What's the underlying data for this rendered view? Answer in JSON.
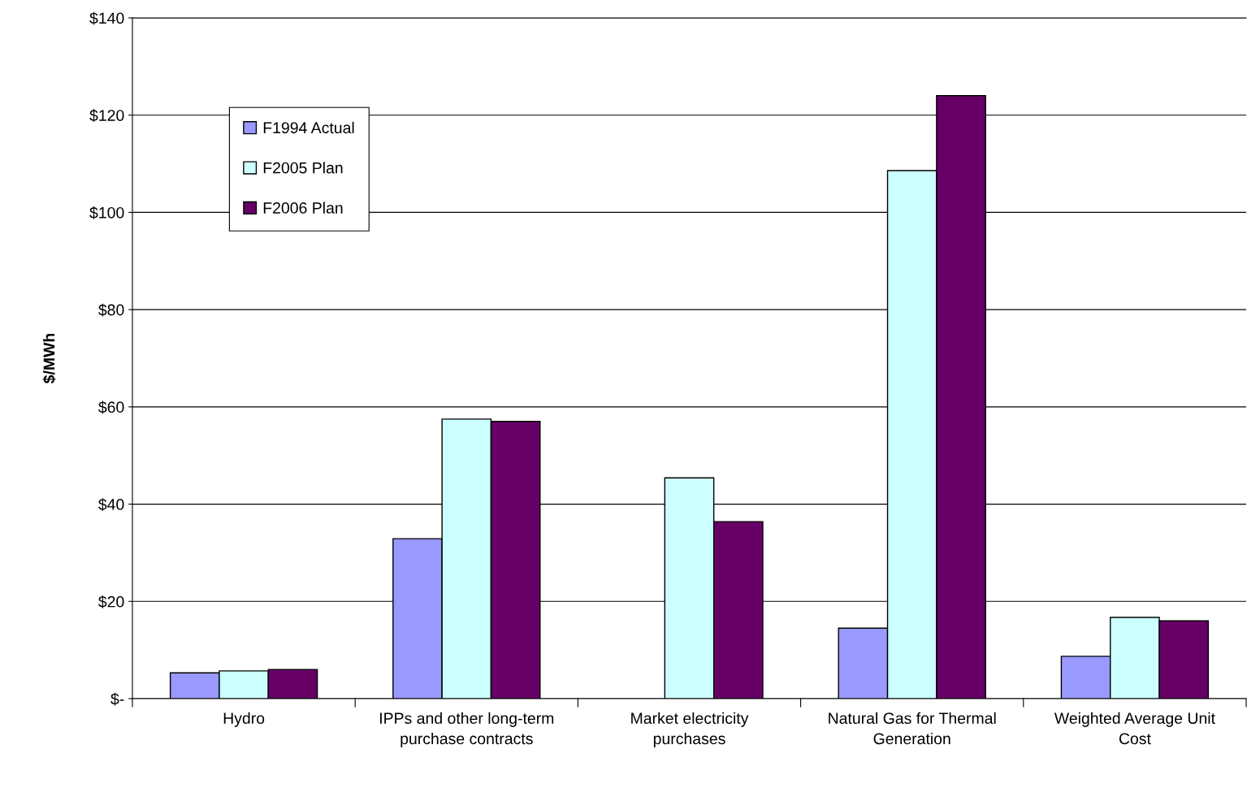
{
  "chart_data": {
    "type": "bar",
    "ylabel": "$/MWh",
    "categories": [
      "Hydro",
      "IPPs and other long-term purchase contracts",
      "Market electricity purchases",
      "Natural Gas for Thermal Generation",
      "Weighted Average Unit Cost"
    ],
    "series": [
      {
        "name": "F1994 Actual",
        "color": "#9999ff",
        "values": [
          5.3,
          32.9,
          null,
          14.5,
          8.7
        ]
      },
      {
        "name": "F2005 Plan",
        "color": "#ccffff",
        "values": [
          5.7,
          57.5,
          45.4,
          108.6,
          16.7
        ]
      },
      {
        "name": "F2006 Plan",
        "color": "#660066",
        "values": [
          6.0,
          57.0,
          36.4,
          124.0,
          16.0
        ]
      }
    ],
    "ylim": [
      0,
      140
    ],
    "yticks": [
      {
        "value": 0,
        "label": "$-"
      },
      {
        "value": 20,
        "label": "$20"
      },
      {
        "value": 40,
        "label": "$40"
      },
      {
        "value": 60,
        "label": "$60"
      },
      {
        "value": 80,
        "label": "$80"
      },
      {
        "value": 100,
        "label": "$100"
      },
      {
        "value": 120,
        "label": "$120"
      },
      {
        "value": 140,
        "label": "$140"
      }
    ],
    "grid": "y",
    "legend": "top left"
  }
}
